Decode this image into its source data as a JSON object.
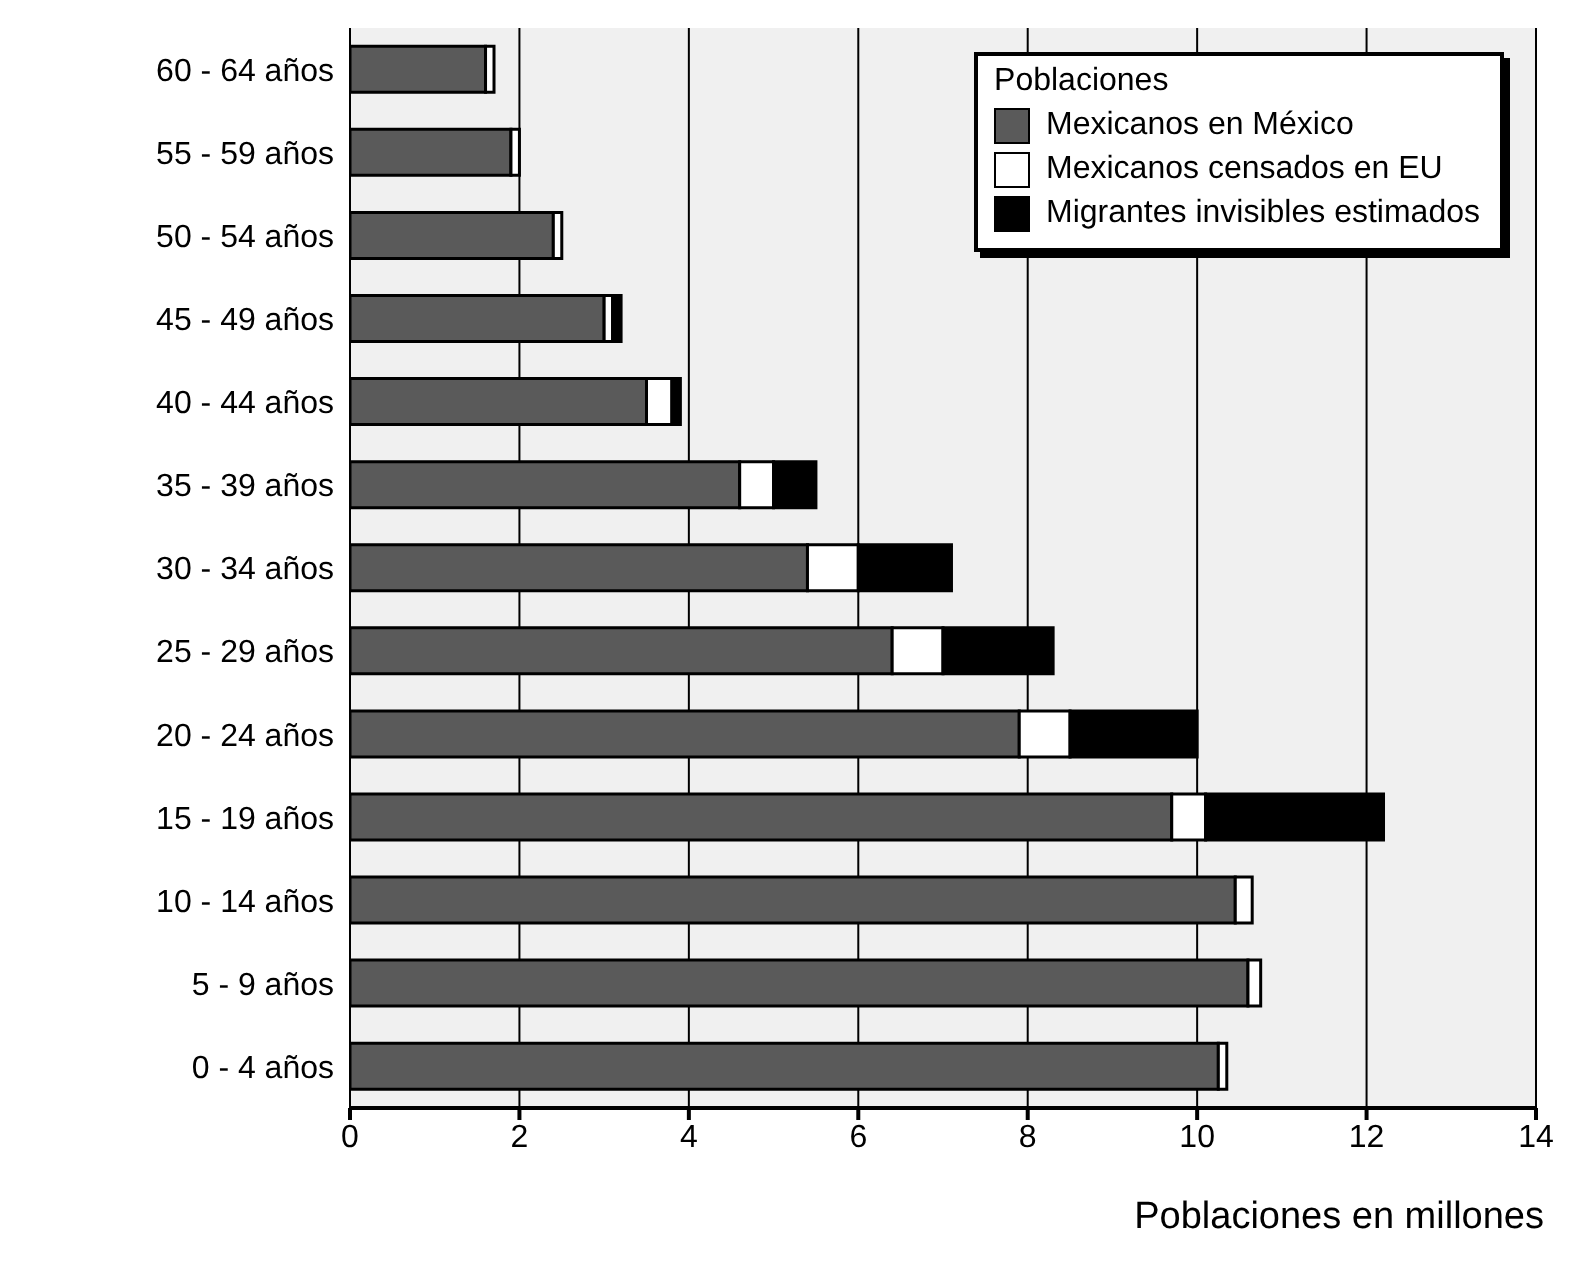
{
  "chart_data": {
    "type": "bar",
    "orientation": "horizontal",
    "stacked": true,
    "xlabel": "Poblaciones en millones",
    "legend_title": "Poblaciones",
    "legend": "top right",
    "grid": "x",
    "categories": [
      "60 - 64 años",
      "55 - 59 años",
      "50 - 54 años",
      "45 - 49 años",
      "40 - 44 años",
      "35 - 39 años",
      "30 - 34 años",
      "25 - 29 años",
      "20 - 24 años",
      "15 - 19 años",
      "10 - 14 años",
      "5 - 9 años",
      "0 - 4 años"
    ],
    "series": [
      {
        "name": "Mexicanos en México",
        "color": "#5a5a5a",
        "values": [
          1.6,
          1.9,
          2.4,
          3.0,
          3.5,
          4.6,
          5.4,
          6.4,
          7.9,
          9.7,
          10.45,
          10.6,
          10.25
        ]
      },
      {
        "name": "Mexicanos censados en EU",
        "color": "#ffffff",
        "values": [
          0.1,
          0.1,
          0.1,
          0.1,
          0.3,
          0.4,
          0.6,
          0.6,
          0.6,
          0.4,
          0.2,
          0.15,
          0.1
        ]
      },
      {
        "name": "Migrantes invisibles estimados",
        "color": "#000000",
        "values": [
          null,
          null,
          null,
          0.1,
          0.1,
          0.5,
          1.1,
          1.3,
          1.5,
          2.1,
          null,
          null,
          null
        ]
      }
    ],
    "xlim": [
      0,
      14
    ],
    "xticks": [
      0,
      2,
      4,
      6,
      8,
      10,
      12,
      14
    ]
  }
}
